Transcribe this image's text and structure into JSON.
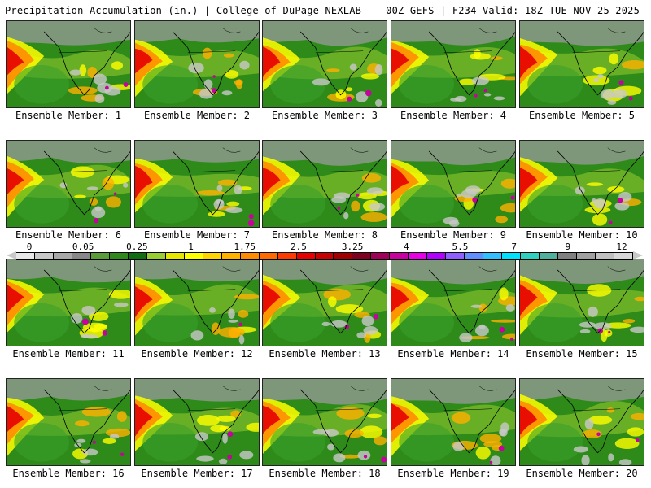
{
  "header": {
    "title": "Precipitation Accumulation (in.) | College of DuPage NEXLAB",
    "run_info": "00Z GEFS | F234 Valid: 18Z TUE NOV 25 2025"
  },
  "panels": [
    {
      "label": "Ensemble Member: 1"
    },
    {
      "label": "Ensemble Member: 2"
    },
    {
      "label": "Ensemble Member: 3"
    },
    {
      "label": "Ensemble Member: 4"
    },
    {
      "label": "Ensemble Member: 5"
    },
    {
      "label": "Ensemble Member: 6"
    },
    {
      "label": "Ensemble Member: 7"
    },
    {
      "label": "Ensemble Member: 8"
    },
    {
      "label": "Ensemble Member: 9"
    },
    {
      "label": "Ensemble Member: 10"
    },
    {
      "label": "Ensemble Member: 11"
    },
    {
      "label": "Ensemble Member: 12"
    },
    {
      "label": "Ensemble Member: 13"
    },
    {
      "label": "Ensemble Member: 14"
    },
    {
      "label": "Ensemble Member: 15"
    },
    {
      "label": "Ensemble Member: 16"
    },
    {
      "label": "Ensemble Member: 17"
    },
    {
      "label": "Ensemble Member: 18"
    },
    {
      "label": "Ensemble Member: 19"
    },
    {
      "label": "Ensemble Member: 20"
    }
  ],
  "colorbar": {
    "labels": [
      "0",
      "0.05",
      "0.25",
      "1",
      "1.75",
      "2.5",
      "3.25",
      "4",
      "5.5",
      "7",
      "9",
      "12"
    ],
    "colors": [
      "#e8e8e8",
      "#c8c8c8",
      "#a8a8a8",
      "#888888",
      "#5a9e3a",
      "#2e8b1a",
      "#0f6e0f",
      "#9acd32",
      "#e6e600",
      "#ffff00",
      "#ffd400",
      "#ffb000",
      "#ff8c00",
      "#ff6a00",
      "#ff3a00",
      "#e60000",
      "#c80000",
      "#a00000",
      "#800020",
      "#a0005a",
      "#c800a0",
      "#e600e6",
      "#b000ff",
      "#9060ff",
      "#6090ff",
      "#30c0ff",
      "#00e0ff",
      "#30d0c0",
      "#50b0a0",
      "#808080",
      "#a0a0a0",
      "#c0c0c0",
      "#d8d8d8"
    ]
  },
  "legend_colors": {
    "ocean_green": "#2e8b1a",
    "wet_red": "#e60000",
    "moderate_yellow": "#ffff00",
    "dry_gray": "#c8c8c8",
    "coastline": "#000000"
  }
}
